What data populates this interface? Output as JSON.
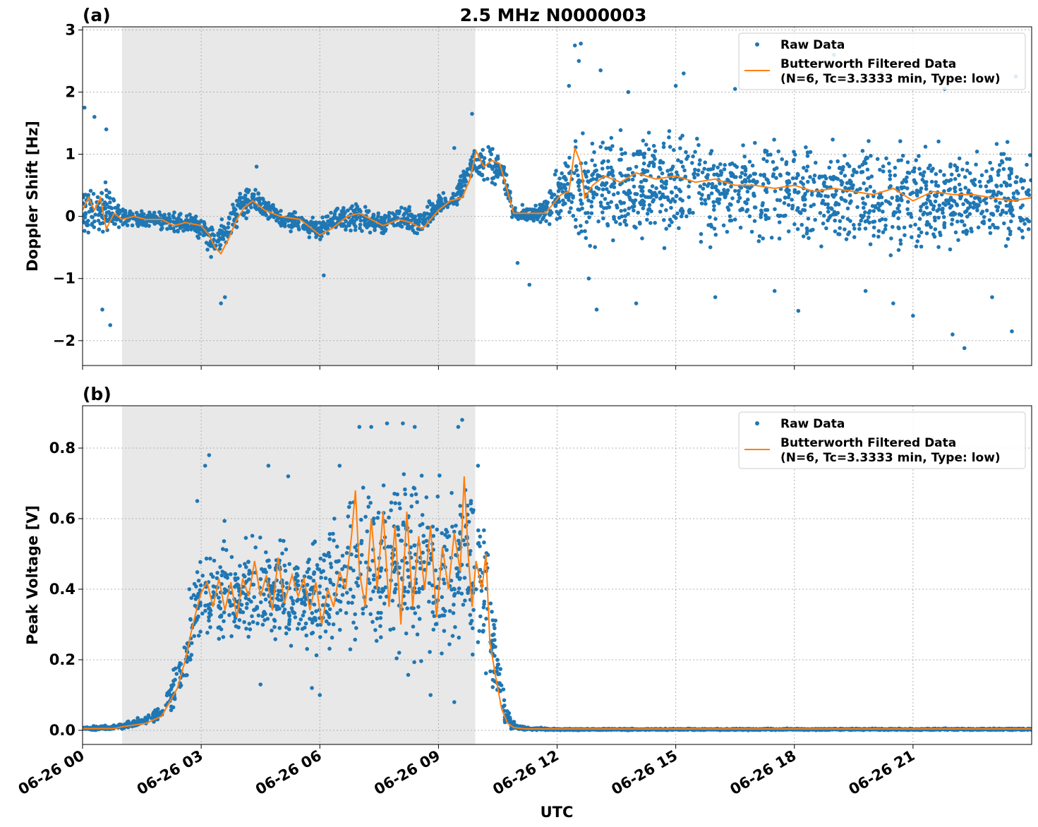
{
  "title": "2.5 MHz N0000003",
  "xlabel": "UTC",
  "colors": {
    "raw": "#1f77b4",
    "filtered": "#ff7f0e",
    "night": "#e8e8e8",
    "grid": "#b0b0b0"
  },
  "legend": {
    "raw": "Raw Data",
    "filtered_line1": "Butterworth Filtered Data",
    "filtered_line2": "(N=6, Tc=3.3333 min, Type: low)"
  },
  "x_ticks": [
    "06-26 00",
    "06-26 03",
    "06-26 06",
    "06-26 09",
    "06-26 12",
    "06-26 15",
    "06-26 18",
    "06-26 21"
  ],
  "chart_data": [
    {
      "type": "scatter",
      "panel_label": "(a)",
      "ylabel": "Doppler Shift [Hz]",
      "xlim_hours": [
        0,
        24
      ],
      "ylim": [
        -2.4,
        3.05
      ],
      "y_ticks": [
        -2,
        -1,
        0,
        1,
        2,
        3
      ],
      "y_tick_labels": [
        "−2",
        "−1",
        "0",
        "1",
        "2",
        "3"
      ],
      "grid": true,
      "legend_position": "top-right",
      "shaded_interval_hours": [
        1.0,
        9.93
      ],
      "raw_band": [
        [
          0.0,
          -0.45,
          0.6
        ],
        [
          0.5,
          -0.4,
          0.7
        ],
        [
          1.0,
          -0.3,
          0.25
        ],
        [
          1.5,
          -0.25,
          0.15
        ],
        [
          2.0,
          -0.25,
          0.1
        ],
        [
          2.5,
          -0.3,
          0.1
        ],
        [
          3.0,
          -0.4,
          0.1
        ],
        [
          3.3,
          -0.8,
          -0.1
        ],
        [
          3.6,
          -0.6,
          0.1
        ],
        [
          4.0,
          -0.2,
          0.45
        ],
        [
          4.3,
          0.0,
          0.6
        ],
        [
          4.6,
          -0.1,
          0.4
        ],
        [
          5.0,
          -0.25,
          0.15
        ],
        [
          5.5,
          -0.3,
          0.1
        ],
        [
          6.0,
          -0.45,
          0.0
        ],
        [
          6.5,
          -0.3,
          0.2
        ],
        [
          7.0,
          -0.3,
          0.3
        ],
        [
          7.5,
          -0.35,
          0.1
        ],
        [
          8.0,
          -0.25,
          0.2
        ],
        [
          8.5,
          -0.4,
          0.15
        ],
        [
          9.0,
          -0.05,
          0.4
        ],
        [
          9.5,
          0.1,
          0.6
        ],
        [
          9.8,
          0.5,
          1.1
        ],
        [
          10.3,
          0.45,
          1.25
        ],
        [
          10.6,
          0.4,
          1.1
        ],
        [
          10.9,
          -0.1,
          0.2
        ],
        [
          11.5,
          -0.15,
          0.2
        ],
        [
          11.9,
          -0.3,
          0.7
        ],
        [
          12.3,
          -0.3,
          1.2
        ],
        [
          12.6,
          -0.6,
          1.4
        ],
        [
          13.0,
          -0.6,
          1.6
        ],
        [
          15.0,
          -0.6,
          1.55
        ],
        [
          17.0,
          -0.6,
          1.4
        ],
        [
          19.0,
          -0.65,
          1.45
        ],
        [
          21.0,
          -0.75,
          1.35
        ],
        [
          23.0,
          -0.75,
          1.35
        ],
        [
          24.0,
          -0.75,
          1.35
        ]
      ],
      "raw_outliers": [
        [
          0.05,
          1.75
        ],
        [
          0.3,
          1.6
        ],
        [
          0.5,
          -1.5
        ],
        [
          0.7,
          -1.75
        ],
        [
          0.6,
          1.4
        ],
        [
          3.5,
          -1.4
        ],
        [
          3.6,
          -1.3
        ],
        [
          4.4,
          0.8
        ],
        [
          6.1,
          -0.95
        ],
        [
          9.4,
          1.1
        ],
        [
          9.85,
          1.65
        ],
        [
          12.45,
          2.75
        ],
        [
          12.6,
          2.78
        ],
        [
          12.55,
          2.5
        ],
        [
          12.3,
          2.1
        ],
        [
          13.1,
          2.35
        ],
        [
          13.0,
          -1.5
        ],
        [
          12.8,
          -1.0
        ],
        [
          15.2,
          2.3
        ],
        [
          15.0,
          2.1
        ],
        [
          18.1,
          -1.52
        ],
        [
          19.0,
          2.6
        ],
        [
          19.5,
          2.4
        ],
        [
          20.2,
          2.3
        ],
        [
          19.8,
          -1.2
        ],
        [
          21.0,
          -1.6
        ],
        [
          22.0,
          -1.9
        ],
        [
          22.3,
          -2.12
        ],
        [
          23.5,
          -1.85
        ],
        [
          23.6,
          2.25
        ],
        [
          11.0,
          -0.75
        ],
        [
          11.3,
          -1.1
        ],
        [
          14.0,
          -1.4
        ],
        [
          16.0,
          -1.3
        ],
        [
          17.5,
          -1.2
        ],
        [
          20.5,
          -1.4
        ],
        [
          23.0,
          -1.3
        ],
        [
          21.8,
          2.05
        ],
        [
          16.5,
          2.05
        ],
        [
          13.8,
          2.0
        ]
      ],
      "filtered": [
        [
          0.0,
          0.1
        ],
        [
          0.15,
          0.3
        ],
        [
          0.3,
          0.1
        ],
        [
          0.45,
          0.3
        ],
        [
          0.6,
          -0.2
        ],
        [
          0.8,
          0.05
        ],
        [
          1.0,
          -0.05
        ],
        [
          1.3,
          0.0
        ],
        [
          1.6,
          -0.05
        ],
        [
          2.0,
          -0.05
        ],
        [
          2.3,
          -0.15
        ],
        [
          2.6,
          -0.1
        ],
        [
          3.0,
          -0.15
        ],
        [
          3.2,
          -0.3
        ],
        [
          3.35,
          -0.5
        ],
        [
          3.5,
          -0.6
        ],
        [
          3.7,
          -0.35
        ],
        [
          3.9,
          -0.05
        ],
        [
          4.1,
          0.15
        ],
        [
          4.3,
          0.25
        ],
        [
          4.6,
          0.1
        ],
        [
          5.0,
          0.0
        ],
        [
          5.5,
          -0.05
        ],
        [
          6.0,
          -0.3
        ],
        [
          6.3,
          -0.2
        ],
        [
          6.7,
          0.0
        ],
        [
          7.0,
          0.05
        ],
        [
          7.3,
          -0.05
        ],
        [
          7.6,
          -0.15
        ],
        [
          8.0,
          -0.05
        ],
        [
          8.3,
          -0.1
        ],
        [
          8.6,
          -0.2
        ],
        [
          9.0,
          0.1
        ],
        [
          9.3,
          0.25
        ],
        [
          9.6,
          0.3
        ],
        [
          9.8,
          0.6
        ],
        [
          9.95,
          1.05
        ],
        [
          10.15,
          0.8
        ],
        [
          10.35,
          0.9
        ],
        [
          10.55,
          0.85
        ],
        [
          10.75,
          0.4
        ],
        [
          10.9,
          0.05
        ],
        [
          11.3,
          0.05
        ],
        [
          11.7,
          0.05
        ],
        [
          11.9,
          0.2
        ],
        [
          12.1,
          0.35
        ],
        [
          12.3,
          0.4
        ],
        [
          12.45,
          1.1
        ],
        [
          12.6,
          0.85
        ],
        [
          12.7,
          0.3
        ],
        [
          12.9,
          0.5
        ],
        [
          13.2,
          0.65
        ],
        [
          13.6,
          0.55
        ],
        [
          14.0,
          0.7
        ],
        [
          14.5,
          0.6
        ],
        [
          15.0,
          0.65
        ],
        [
          15.5,
          0.55
        ],
        [
          16.0,
          0.6
        ],
        [
          16.5,
          0.5
        ],
        [
          17.0,
          0.5
        ],
        [
          17.5,
          0.45
        ],
        [
          18.0,
          0.5
        ],
        [
          18.5,
          0.4
        ],
        [
          19.0,
          0.45
        ],
        [
          19.5,
          0.4
        ],
        [
          20.0,
          0.35
        ],
        [
          20.5,
          0.45
        ],
        [
          21.0,
          0.25
        ],
        [
          21.5,
          0.4
        ],
        [
          22.0,
          0.35
        ],
        [
          22.5,
          0.35
        ],
        [
          23.0,
          0.3
        ],
        [
          23.5,
          0.25
        ],
        [
          24.0,
          0.3
        ]
      ]
    },
    {
      "type": "scatter",
      "panel_label": "(b)",
      "ylabel": "Peak Voltage [V]",
      "xlim_hours": [
        0,
        24
      ],
      "ylim": [
        -0.04,
        0.92
      ],
      "y_ticks": [
        0.0,
        0.2,
        0.4,
        0.6,
        0.8
      ],
      "y_tick_labels": [
        "0.0",
        "0.2",
        "0.4",
        "0.6",
        "0.8"
      ],
      "grid": true,
      "legend_position": "top-right",
      "shaded_interval_hours": [
        1.0,
        9.93
      ],
      "raw_band": [
        [
          0.0,
          0.0,
          0.01
        ],
        [
          1.0,
          0.0,
          0.02
        ],
        [
          1.5,
          0.01,
          0.04
        ],
        [
          2.0,
          0.02,
          0.08
        ],
        [
          2.3,
          0.05,
          0.18
        ],
        [
          2.6,
          0.1,
          0.3
        ],
        [
          2.8,
          0.15,
          0.45
        ],
        [
          3.0,
          0.18,
          0.55
        ],
        [
          3.5,
          0.2,
          0.6
        ],
        [
          4.0,
          0.2,
          0.55
        ],
        [
          4.5,
          0.2,
          0.6
        ],
        [
          5.0,
          0.2,
          0.58
        ],
        [
          5.5,
          0.18,
          0.55
        ],
        [
          6.0,
          0.16,
          0.6
        ],
        [
          6.5,
          0.18,
          0.65
        ],
        [
          7.0,
          0.15,
          0.8
        ],
        [
          7.5,
          0.15,
          0.8
        ],
        [
          8.0,
          0.15,
          0.82
        ],
        [
          8.5,
          0.15,
          0.8
        ],
        [
          9.0,
          0.15,
          0.78
        ],
        [
          9.5,
          0.18,
          0.82
        ],
        [
          9.9,
          0.2,
          0.75
        ],
        [
          10.2,
          0.12,
          0.65
        ],
        [
          10.45,
          0.05,
          0.35
        ],
        [
          10.65,
          0.01,
          0.12
        ],
        [
          10.85,
          0.0,
          0.03
        ],
        [
          11.2,
          0.0,
          0.01
        ],
        [
          12.0,
          0.0,
          0.005
        ],
        [
          24.0,
          0.0,
          0.006
        ]
      ],
      "raw_outliers": [
        [
          3.2,
          0.78
        ],
        [
          3.1,
          0.75
        ],
        [
          4.7,
          0.75
        ],
        [
          5.2,
          0.72
        ],
        [
          6.5,
          0.75
        ],
        [
          7.0,
          0.86
        ],
        [
          7.3,
          0.86
        ],
        [
          7.7,
          0.87
        ],
        [
          8.1,
          0.87
        ],
        [
          8.4,
          0.86
        ],
        [
          9.6,
          0.88
        ],
        [
          9.5,
          0.86
        ],
        [
          10.0,
          0.75
        ],
        [
          6.0,
          0.1
        ],
        [
          8.8,
          0.1
        ],
        [
          9.4,
          0.08
        ],
        [
          5.8,
          0.12
        ],
        [
          4.5,
          0.13
        ],
        [
          2.7,
          0.4
        ],
        [
          2.9,
          0.65
        ]
      ],
      "filtered": [
        [
          0.0,
          0.005
        ],
        [
          0.8,
          0.005
        ],
        [
          1.0,
          0.01
        ],
        [
          1.3,
          0.015
        ],
        [
          1.6,
          0.02
        ],
        [
          2.0,
          0.04
        ],
        [
          2.2,
          0.08
        ],
        [
          2.4,
          0.12
        ],
        [
          2.6,
          0.2
        ],
        [
          2.75,
          0.28
        ],
        [
          2.9,
          0.35
        ],
        [
          3.0,
          0.39
        ],
        [
          3.15,
          0.42
        ],
        [
          3.3,
          0.35
        ],
        [
          3.45,
          0.43
        ],
        [
          3.6,
          0.34
        ],
        [
          3.75,
          0.42
        ],
        [
          3.9,
          0.32
        ],
        [
          4.05,
          0.43
        ],
        [
          4.2,
          0.38
        ],
        [
          4.35,
          0.48
        ],
        [
          4.5,
          0.38
        ],
        [
          4.65,
          0.44
        ],
        [
          4.8,
          0.34
        ],
        [
          4.95,
          0.49
        ],
        [
          5.1,
          0.36
        ],
        [
          5.3,
          0.44
        ],
        [
          5.45,
          0.38
        ],
        [
          5.6,
          0.43
        ],
        [
          5.75,
          0.34
        ],
        [
          5.9,
          0.42
        ],
        [
          6.05,
          0.3
        ],
        [
          6.2,
          0.4
        ],
        [
          6.35,
          0.35
        ],
        [
          6.5,
          0.45
        ],
        [
          6.65,
          0.4
        ],
        [
          6.8,
          0.55
        ],
        [
          6.9,
          0.68
        ],
        [
          7.0,
          0.45
        ],
        [
          7.15,
          0.35
        ],
        [
          7.3,
          0.6
        ],
        [
          7.45,
          0.4
        ],
        [
          7.6,
          0.62
        ],
        [
          7.75,
          0.35
        ],
        [
          7.9,
          0.58
        ],
        [
          8.05,
          0.3
        ],
        [
          8.2,
          0.62
        ],
        [
          8.35,
          0.35
        ],
        [
          8.5,
          0.55
        ],
        [
          8.65,
          0.4
        ],
        [
          8.8,
          0.58
        ],
        [
          8.95,
          0.32
        ],
        [
          9.1,
          0.52
        ],
        [
          9.25,
          0.4
        ],
        [
          9.4,
          0.56
        ],
        [
          9.55,
          0.45
        ],
        [
          9.65,
          0.72
        ],
        [
          9.75,
          0.5
        ],
        [
          9.85,
          0.35
        ],
        [
          9.95,
          0.48
        ],
        [
          10.1,
          0.4
        ],
        [
          10.2,
          0.5
        ],
        [
          10.3,
          0.25
        ],
        [
          10.45,
          0.15
        ],
        [
          10.6,
          0.06
        ],
        [
          10.75,
          0.02
        ],
        [
          10.9,
          0.008
        ],
        [
          11.2,
          0.004
        ],
        [
          12.0,
          0.004
        ],
        [
          24.0,
          0.004
        ]
      ]
    }
  ]
}
